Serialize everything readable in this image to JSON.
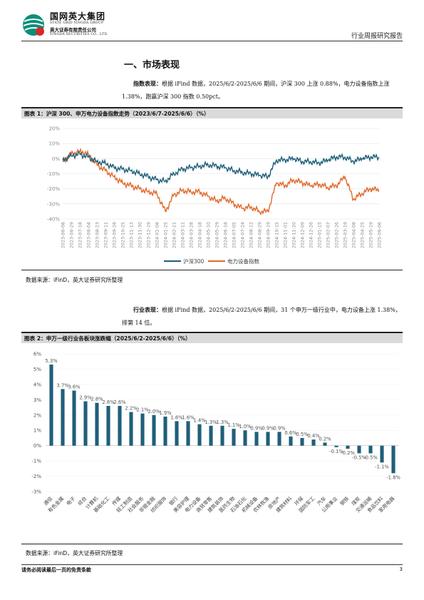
{
  "header": {
    "company_cn": "国网英大集团",
    "company_en": "STATE GRID YINGDA GROUP",
    "subsidiary_cn": "英大证券有限责任公司",
    "subsidiary_en": "YINGDA SECURITIES CO., LTD.",
    "report_type": "行业周报研究报告"
  },
  "section_title": "一、市场表现",
  "para1": {
    "bold": "指数表现：",
    "text": "根据 iFind 数据，2025/6/2-2025/6/6 期间，沪深 300 上涨 0.88%，电力设备指数上涨 1.38%，跑赢沪深 300 指数 0.50pct。"
  },
  "figure1_title": "图表 1：沪深 300、申万电力设备指数走势（2023/6/7-2025/6/6）（%）",
  "source1": "数据来源：iFinD，英大证券研究所整理",
  "para2": {
    "bold": "行业表现：",
    "text": "根据 iFind 数据，2025/6/2-2025/6/6 期间，31 个申万一级行业中，电力设备上涨 1.38%，排第 14 位。"
  },
  "figure2_title": "图表 2：申万一级行业各板块涨跌幅（2025/6/2-2025/6/6）（%）",
  "source2": "数据来源：iFinD，英大证券研究所整理",
  "footer": {
    "disclaimer": "请务必阅读最后一页的免责条款",
    "page": "3"
  },
  "colors": {
    "series1": "#1f5f7a",
    "series2": "#e06a2b",
    "bar": "#1f5f7a"
  },
  "chart_data": [
    {
      "type": "line",
      "ylim": [
        -40,
        20
      ],
      "yticks": [
        20,
        10,
        0,
        -10,
        -20,
        -30,
        -40
      ],
      "ytick_labels": [
        "20%",
        "10%",
        "0%",
        "-10%",
        "-20%",
        "-30%",
        "-40%"
      ],
      "x_labels": [
        "2023-06-08",
        "2023-06-29",
        "2023-07-18",
        "2023-08-04",
        "2023-08-23",
        "2023-09-11",
        "2023-09-28",
        "2023-10-25",
        "2023-11-13",
        "2023-11-30",
        "2023-12-19",
        "2024-01-08",
        "2024-01-25",
        "2024-02-21",
        "2024-03-11",
        "2024-03-28",
        "2024-04-18",
        "2024-05-10",
        "2024-05-29",
        "2024-06-18",
        "2024-07-05",
        "2024-07-24",
        "2024-08-12",
        "2024-08-29",
        "2024-09-19",
        "2024-10-15",
        "2024-11-01",
        "2024-11-20",
        "2024-12-09",
        "2024-12-26",
        "2025-01-15",
        "2025-02-07",
        "2025-02-26",
        "2025-03-19",
        "2025-04-08",
        "2025-04-25",
        "2025-05-19",
        "2025-06-06"
      ],
      "legend_position": "bottom",
      "series": [
        {
          "name": "沪深300",
          "values": [
            -1,
            2,
            3,
            1,
            -2,
            -3,
            -6,
            -7,
            -8,
            -10,
            -12,
            -14,
            -15,
            -10,
            -7,
            -6,
            -5,
            -4,
            -5,
            -6,
            -8,
            -9,
            -10,
            -11,
            -12,
            -1,
            -1,
            0,
            -2,
            -2,
            -3,
            -1,
            1,
            1,
            -2,
            0,
            1,
            1
          ]
        },
        {
          "name": "电力设备指数",
          "values": [
            -2,
            3,
            5,
            3,
            -4,
            -8,
            -12,
            -16,
            -18,
            -20,
            -22,
            -23,
            -35,
            -24,
            -21,
            -22,
            -22,
            -25,
            -28,
            -26,
            -30,
            -33,
            -32,
            -35,
            -35,
            -16,
            -18,
            -14,
            -16,
            -18,
            -17,
            -19,
            -18,
            -12,
            -27,
            -23,
            -20,
            -21
          ]
        }
      ]
    },
    {
      "type": "bar",
      "ylim": [
        -3,
        6
      ],
      "yticks": [
        6,
        5,
        4,
        3,
        2,
        1,
        0,
        -1,
        -2,
        -3
      ],
      "ytick_labels": [
        "6%",
        "5%",
        "4%",
        "3%",
        "2%",
        "1%",
        "0%",
        "-1%",
        "-2%",
        "-3%"
      ],
      "categories": [
        "通信",
        "有色金属",
        "电子",
        "综合",
        "计算机",
        "基础化工",
        "传媒",
        "轻工制造",
        "社会服务",
        "非银金融",
        "纺织服饰",
        "银行",
        "美容护理",
        "电力设备",
        "商贸零售",
        "建筑装饰",
        "医药生物",
        "石油石化",
        "机械设备",
        "农林牧渔",
        "房地产",
        "建筑材料",
        "环保",
        "国防军工",
        "汽车",
        "公用事业",
        "钢铁",
        "煤炭",
        "交通运输",
        "食品饮料",
        "家用电器"
      ],
      "values": [
        5.3,
        3.7,
        3.6,
        2.9,
        2.8,
        2.6,
        2.6,
        2.2,
        2.1,
        2.0,
        1.9,
        1.6,
        1.6,
        1.4,
        1.3,
        1.3,
        1.1,
        1.0,
        0.9,
        0.9,
        0.9,
        0.6,
        0.5,
        0.4,
        0.2,
        -0.1,
        -0.2,
        -0.5,
        -0.5,
        -1.1,
        -1.8
      ],
      "value_labels": [
        "5.3%",
        "3.7%",
        "3.6%",
        "2.9%",
        "2.8%",
        "2.6%",
        "2.6%",
        "2.2%",
        "2.1%",
        "2.0%",
        "1.9%",
        "1.6%",
        "1.6%",
        "1.4%",
        "1.3%",
        "1.3%",
        "1.1%",
        "1.0%",
        "0.9%",
        "0.9%",
        "0.9%",
        "0.6%",
        "0.5%",
        "0.4%",
        "0.2%",
        "-0.1%",
        "-0.2%",
        "-0.5%",
        "-0.5%",
        "-1.1%",
        "-1.8%"
      ]
    }
  ]
}
